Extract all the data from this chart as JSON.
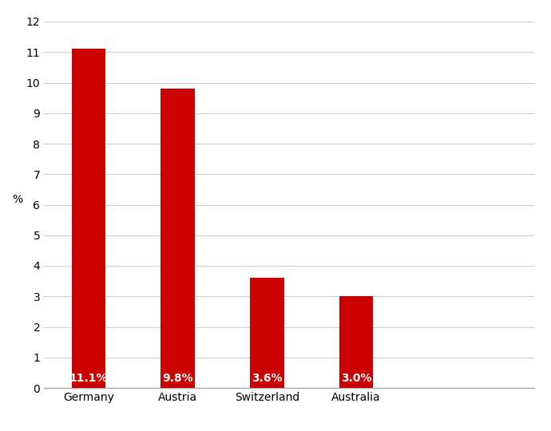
{
  "categories": [
    "Germany",
    "Austria",
    "Switzerland",
    "Australia"
  ],
  "values": [
    11.1,
    9.8,
    3.6,
    3.0
  ],
  "labels": [
    "11.1%",
    "9.8%",
    "3.6%",
    "3.0%"
  ],
  "bar_color": "#cc0000",
  "ylabel": "%",
  "ylim": [
    0,
    12
  ],
  "yticks": [
    0,
    1,
    2,
    3,
    4,
    5,
    6,
    7,
    8,
    9,
    10,
    11,
    12
  ],
  "background_color": "#ffffff",
  "grid_color": "#cccccc",
  "label_color": "#ffffff",
  "label_fontsize": 10,
  "tick_fontsize": 10,
  "ylabel_fontsize": 10,
  "bar_width": 0.38,
  "figsize": [
    6.9,
    5.4
  ],
  "dpi": 100
}
